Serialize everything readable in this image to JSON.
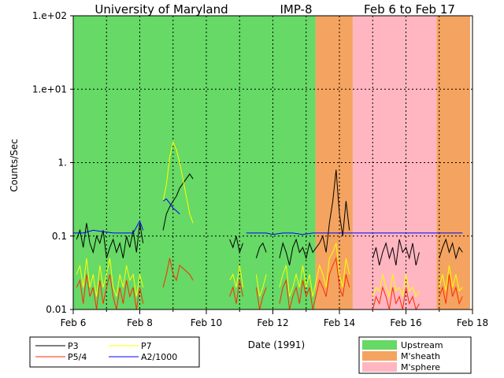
{
  "chart_data": {
    "type": "line",
    "title": {
      "left": "University of Maryland",
      "center": "IMP-8",
      "right": "Feb 6 to Feb 17"
    },
    "xlabel": "Date (1991)",
    "ylabel": "Counts/Sec",
    "yscale": "log",
    "ylim": [
      0.01,
      100
    ],
    "xlim": [
      6,
      18
    ],
    "x_units": "day of February 1991",
    "grid": true,
    "yticks": [
      {
        "value": 0.01,
        "label": "0.01"
      },
      {
        "value": 0.1,
        "label": "0.1"
      },
      {
        "value": 1,
        "label": "1."
      },
      {
        "value": 10,
        "label": "1.e+01"
      },
      {
        "value": 100,
        "label": "1.e+02"
      }
    ],
    "xticks": [
      {
        "value": 6,
        "label": "Feb 6"
      },
      {
        "value": 8,
        "label": "Feb 8"
      },
      {
        "value": 10,
        "label": "Feb 10"
      },
      {
        "value": 12,
        "label": "Feb 12"
      },
      {
        "value": 14,
        "label": "Feb 14"
      },
      {
        "value": 16,
        "label": "Feb 16"
      },
      {
        "value": 18,
        "label": "Feb 18"
      }
    ],
    "regions": [
      {
        "type": "Upstream",
        "start": 6.0,
        "end": 13.28,
        "color": "#66d966"
      },
      {
        "type": "M'sheath",
        "start": 13.28,
        "end": 14.4,
        "color": "#f4a460"
      },
      {
        "type": "M'sphere",
        "start": 14.4,
        "end": 16.92,
        "color": "#ffb6c1"
      },
      {
        "type": "M'sheath",
        "start": 16.92,
        "end": 17.93,
        "color": "#f4a460"
      }
    ],
    "region_legend": [
      {
        "label": "Upstream",
        "color": "#66d966"
      },
      {
        "label": "M'sheath",
        "color": "#f4a460"
      },
      {
        "label": "M'sphere",
        "color": "#ffb6c1"
      }
    ],
    "series": [
      {
        "name": "P3",
        "color": "#000000",
        "x": [
          6.1,
          6.2,
          6.3,
          6.4,
          6.5,
          6.6,
          6.7,
          6.8,
          6.9,
          7.0,
          7.1,
          7.2,
          7.3,
          7.4,
          7.5,
          7.6,
          7.7,
          7.8,
          7.9,
          8.0,
          8.1,
          8.7,
          8.8,
          8.9,
          9.0,
          9.1,
          9.2,
          9.5,
          9.6,
          10.7,
          10.8,
          10.9,
          11.0,
          11.1,
          11.5,
          11.6,
          11.7,
          11.8,
          12.2,
          12.3,
          12.4,
          12.5,
          12.6,
          12.7,
          12.8,
          12.9,
          13.0,
          13.1,
          13.2,
          13.4,
          13.5,
          13.6,
          13.7,
          13.8,
          13.9,
          14.0,
          14.1,
          14.2,
          14.3,
          15.0,
          15.1,
          15.2,
          15.3,
          15.4,
          15.5,
          15.6,
          15.7,
          15.8,
          15.9,
          16.0,
          16.1,
          16.2,
          16.3,
          16.4,
          17.0,
          17.1,
          17.2,
          17.3,
          17.4,
          17.5,
          17.6,
          17.7
        ],
        "y": [
          0.09,
          0.12,
          0.07,
          0.15,
          0.08,
          0.06,
          0.1,
          0.08,
          0.12,
          0.05,
          0.07,
          0.09,
          0.06,
          0.08,
          0.05,
          0.1,
          0.07,
          0.12,
          0.06,
          0.15,
          0.08,
          0.12,
          0.2,
          0.25,
          0.3,
          0.35,
          0.45,
          0.7,
          0.6,
          0.09,
          0.07,
          0.1,
          0.06,
          0.08,
          0.05,
          0.07,
          0.08,
          0.06,
          0.05,
          0.08,
          0.06,
          0.04,
          0.07,
          0.09,
          0.06,
          0.07,
          0.05,
          0.08,
          0.06,
          0.08,
          0.1,
          0.06,
          0.15,
          0.3,
          0.8,
          0.2,
          0.1,
          0.3,
          0.12,
          0.05,
          0.07,
          0.04,
          0.06,
          0.08,
          0.05,
          0.07,
          0.04,
          0.09,
          0.06,
          0.07,
          0.05,
          0.08,
          0.04,
          0.06,
          0.05,
          0.07,
          0.09,
          0.06,
          0.08,
          0.05,
          0.07,
          0.06
        ]
      },
      {
        "name": "P5/4",
        "color": "#ff2a00",
        "x": [
          6.1,
          6.2,
          6.3,
          6.4,
          6.5,
          6.6,
          6.7,
          6.8,
          6.9,
          7.0,
          7.1,
          7.2,
          7.3,
          7.4,
          7.5,
          7.6,
          7.7,
          7.8,
          7.9,
          8.0,
          8.1,
          8.7,
          8.8,
          8.9,
          9.0,
          9.1,
          9.2,
          9.5,
          9.6,
          10.7,
          10.8,
          10.9,
          11.0,
          11.1,
          11.5,
          11.6,
          11.7,
          11.8,
          12.2,
          12.3,
          12.4,
          12.5,
          12.6,
          12.7,
          12.8,
          12.9,
          13.0,
          13.1,
          13.2,
          13.4,
          13.5,
          13.6,
          13.7,
          13.8,
          13.9,
          14.0,
          14.1,
          14.2,
          14.3,
          15.0,
          15.1,
          15.2,
          15.3,
          15.4,
          15.5,
          15.6,
          15.7,
          15.8,
          15.9,
          16.0,
          16.1,
          16.2,
          16.3,
          16.4,
          17.0,
          17.1,
          17.2,
          17.3,
          17.4,
          17.5,
          17.6,
          17.7
        ],
        "y": [
          0.02,
          0.025,
          0.012,
          0.03,
          0.015,
          0.02,
          0.01,
          0.025,
          0.012,
          0.02,
          0.03,
          0.015,
          0.01,
          0.02,
          0.012,
          0.025,
          0.015,
          0.02,
          0.01,
          0.02,
          0.012,
          0.02,
          0.03,
          0.05,
          0.03,
          0.025,
          0.04,
          0.03,
          0.025,
          0.015,
          0.02,
          0.012,
          0.025,
          0.015,
          0.02,
          0.01,
          0.015,
          0.02,
          0.012,
          0.02,
          0.025,
          0.01,
          0.015,
          0.02,
          0.012,
          0.025,
          0.015,
          0.02,
          0.01,
          0.025,
          0.02,
          0.015,
          0.03,
          0.04,
          0.05,
          0.02,
          0.015,
          0.03,
          0.02,
          0.01,
          0.015,
          0.012,
          0.02,
          0.015,
          0.01,
          0.02,
          0.012,
          0.015,
          0.01,
          0.02,
          0.012,
          0.015,
          0.01,
          0.012,
          0.015,
          0.02,
          0.012,
          0.03,
          0.015,
          0.02,
          0.012,
          0.015
        ]
      },
      {
        "name": "P7",
        "color": "#ffff00",
        "x": [
          6.1,
          6.2,
          6.3,
          6.4,
          6.5,
          6.6,
          6.7,
          6.8,
          6.9,
          7.0,
          7.1,
          7.2,
          7.3,
          7.4,
          7.5,
          7.6,
          7.7,
          7.8,
          7.9,
          8.0,
          8.1,
          8.7,
          8.8,
          8.9,
          9.0,
          9.1,
          9.2,
          9.5,
          9.6,
          10.7,
          10.8,
          10.9,
          11.0,
          11.1,
          11.5,
          11.6,
          11.7,
          11.8,
          12.2,
          12.3,
          12.4,
          12.5,
          12.6,
          12.7,
          12.8,
          12.9,
          13.0,
          13.1,
          13.2,
          13.4,
          13.5,
          13.6,
          13.7,
          13.8,
          13.9,
          14.0,
          14.1,
          14.2,
          14.3,
          15.0,
          15.1,
          15.2,
          15.3,
          15.4,
          15.5,
          15.6,
          15.7,
          15.8,
          15.9,
          16.0,
          16.1,
          16.2,
          16.3,
          16.4,
          17.0,
          17.1,
          17.2,
          17.3,
          17.4,
          17.5,
          17.6,
          17.7
        ],
        "y": [
          0.03,
          0.04,
          0.02,
          0.05,
          0.02,
          0.03,
          0.015,
          0.04,
          0.02,
          0.03,
          0.05,
          0.02,
          0.015,
          0.03,
          0.02,
          0.04,
          0.025,
          0.03,
          0.015,
          0.03,
          0.02,
          0.3,
          0.5,
          1.2,
          1.9,
          1.5,
          1.0,
          0.2,
          0.15,
          0.025,
          0.03,
          0.02,
          0.04,
          0.02,
          0.03,
          0.015,
          0.02,
          0.03,
          0.02,
          0.03,
          0.04,
          0.015,
          0.02,
          0.03,
          0.02,
          0.04,
          0.02,
          0.03,
          0.015,
          0.04,
          0.03,
          0.02,
          0.05,
          0.06,
          0.08,
          0.03,
          0.02,
          0.05,
          0.03,
          0.015,
          0.02,
          0.018,
          0.03,
          0.02,
          0.015,
          0.03,
          0.018,
          0.02,
          0.015,
          0.03,
          0.018,
          0.02,
          0.015,
          0.018,
          0.02,
          0.03,
          0.018,
          0.04,
          0.02,
          0.03,
          0.018,
          0.02
        ]
      },
      {
        "name": "A2/1000",
        "color": "#0000ff",
        "x": [
          6.0,
          6.3,
          6.6,
          6.9,
          7.2,
          7.5,
          7.8,
          8.0,
          8.1,
          8.7,
          8.8,
          8.9,
          9.0,
          9.1,
          9.2,
          11.2,
          11.5,
          11.8,
          12.0,
          12.3,
          12.6,
          12.9,
          13.2,
          13.5,
          13.8,
          14.1,
          14.4,
          14.7,
          15.0,
          15.3,
          15.6,
          15.9,
          16.2,
          16.5,
          16.8,
          17.1,
          17.4,
          17.7
        ],
        "y": [
          0.11,
          0.11,
          0.12,
          0.115,
          0.11,
          0.11,
          0.11,
          0.16,
          0.12,
          0.3,
          0.32,
          0.28,
          0.24,
          0.22,
          0.2,
          0.11,
          0.11,
          0.11,
          0.105,
          0.11,
          0.11,
          0.105,
          0.11,
          0.11,
          0.11,
          0.11,
          0.11,
          0.11,
          0.11,
          0.11,
          0.11,
          0.11,
          0.11,
          0.11,
          0.11,
          0.11,
          0.11,
          0.11
        ]
      }
    ],
    "series_legend": [
      {
        "label": "P3",
        "color": "#000000"
      },
      {
        "label": "P7",
        "color": "#ffff00"
      },
      {
        "label": "P5/4",
        "color": "#ff2a00"
      },
      {
        "label": "A2/1000",
        "color": "#0000ff"
      }
    ]
  }
}
